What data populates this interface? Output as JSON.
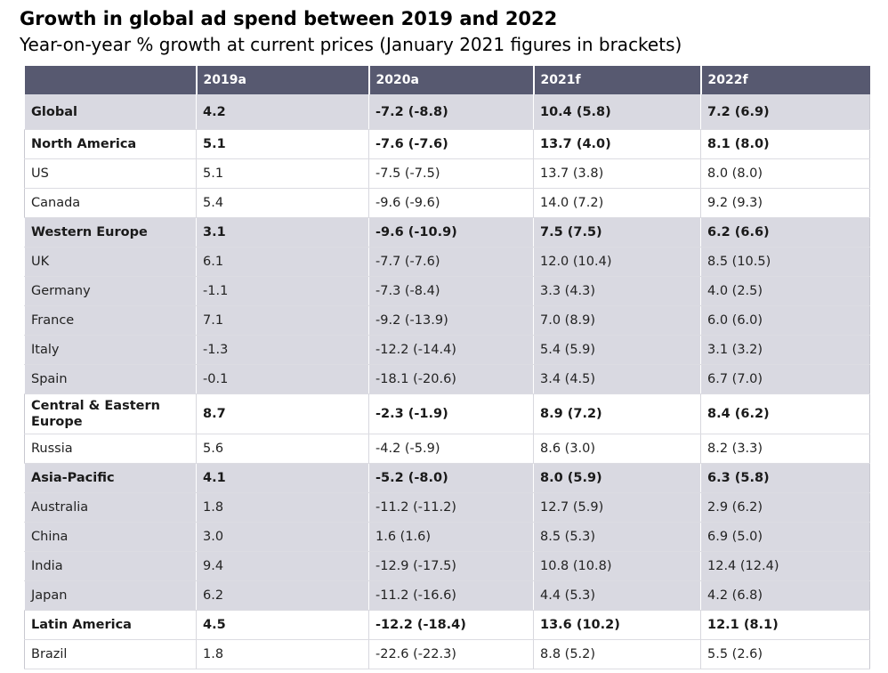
{
  "chart_data": {
    "type": "table",
    "title": "Growth in global ad spend between 2019 and 2022",
    "subtitle": "Year-on-year % growth at current prices (January 2021 figures in brackets)",
    "columns": [
      "",
      "2019a",
      "2020a",
      "2021f",
      "2022f"
    ],
    "rows": [
      {
        "label": "Global",
        "values": [
          "4.2",
          "-7.2 (-8.8)",
          "10.4 (5.8)",
          "7.2 (6.9)"
        ],
        "bold": true,
        "shaded": true
      },
      {
        "label": "North America",
        "values": [
          "5.1",
          "-7.6 (-7.6)",
          "13.7 (4.0)",
          "8.1 (8.0)"
        ],
        "bold": true,
        "shaded": false
      },
      {
        "label": "US",
        "values": [
          "5.1",
          "-7.5 (-7.5)",
          "13.7 (3.8)",
          "8.0 (8.0)"
        ],
        "bold": false,
        "shaded": false
      },
      {
        "label": "Canada",
        "values": [
          "5.4",
          "-9.6 (-9.6)",
          "14.0 (7.2)",
          "9.2 (9.3)"
        ],
        "bold": false,
        "shaded": false
      },
      {
        "label": "Western Europe",
        "values": [
          "3.1",
          "-9.6 (-10.9)",
          "7.5 (7.5)",
          "6.2 (6.6)"
        ],
        "bold": true,
        "shaded": true
      },
      {
        "label": "UK",
        "values": [
          "6.1",
          "-7.7 (-7.6)",
          "12.0 (10.4)",
          "8.5 (10.5)"
        ],
        "bold": false,
        "shaded": true
      },
      {
        "label": "Germany",
        "values": [
          "-1.1",
          "-7.3 (-8.4)",
          "3.3 (4.3)",
          "4.0 (2.5)"
        ],
        "bold": false,
        "shaded": true
      },
      {
        "label": "France",
        "values": [
          "7.1",
          "-9.2 (-13.9)",
          "7.0 (8.9)",
          "6.0 (6.0)"
        ],
        "bold": false,
        "shaded": true
      },
      {
        "label": "Italy",
        "values": [
          "-1.3",
          "-12.2 (-14.4)",
          "5.4 (5.9)",
          "3.1 (3.2)"
        ],
        "bold": false,
        "shaded": true
      },
      {
        "label": "Spain",
        "values": [
          "-0.1",
          "-18.1 (-20.6)",
          "3.4 (4.5)",
          "6.7 (7.0)"
        ],
        "bold": false,
        "shaded": true
      },
      {
        "label": "Central & Eastern Europe",
        "values": [
          "8.7",
          "-2.3 (-1.9)",
          "8.9 (7.2)",
          "8.4 (6.2)"
        ],
        "bold": true,
        "shaded": false
      },
      {
        "label": "Russia",
        "values": [
          "5.6",
          "-4.2 (-5.9)",
          "8.6 (3.0)",
          "8.2 (3.3)"
        ],
        "bold": false,
        "shaded": false
      },
      {
        "label": "Asia-Pacific",
        "values": [
          "4.1",
          "-5.2 (-8.0)",
          "8.0 (5.9)",
          "6.3 (5.8)"
        ],
        "bold": true,
        "shaded": true
      },
      {
        "label": "Australia",
        "values": [
          "1.8",
          "-11.2 (-11.2)",
          "12.7 (5.9)",
          "2.9 (6.2)"
        ],
        "bold": false,
        "shaded": true
      },
      {
        "label": "China",
        "values": [
          "3.0",
          "1.6 (1.6)",
          "8.5 (5.3)",
          "6.9 (5.0)"
        ],
        "bold": false,
        "shaded": true
      },
      {
        "label": "India",
        "values": [
          "9.4",
          "-12.9 (-17.5)",
          "10.8 (10.8)",
          "12.4 (12.4)"
        ],
        "bold": false,
        "shaded": true
      },
      {
        "label": "Japan",
        "values": [
          "6.2",
          "-11.2 (-16.6)",
          "4.4 (5.3)",
          "4.2 (6.8)"
        ],
        "bold": false,
        "shaded": true
      },
      {
        "label": "Latin America",
        "values": [
          "4.5",
          "-12.2 (-18.4)",
          "13.6 (10.2)",
          "12.1 (8.1)"
        ],
        "bold": true,
        "shaded": false
      },
      {
        "label": "Brazil",
        "values": [
          "1.8",
          "-22.6 (-22.3)",
          "8.8 (5.2)",
          "5.5 (2.6)"
        ],
        "bold": false,
        "shaded": false
      }
    ],
    "colors": {
      "header": "#575970",
      "shaded_row": "#d9d9e1"
    }
  }
}
